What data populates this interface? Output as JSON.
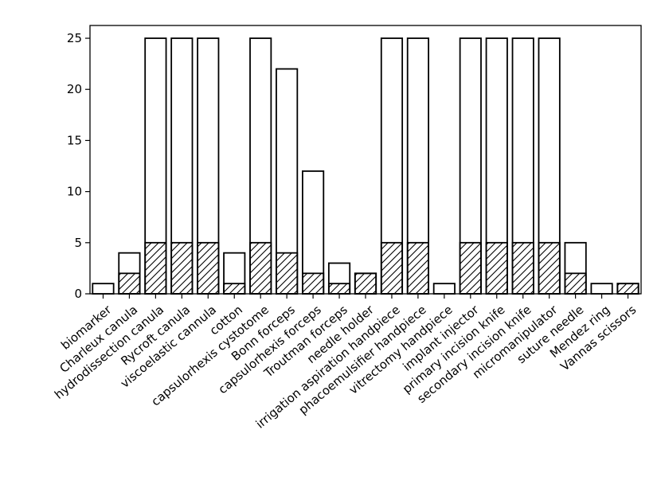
{
  "chart_data": {
    "type": "bar",
    "categories": [
      "biomarker",
      "Charleux canula",
      "hydrodissection canula",
      "Rycroft canula",
      "viscoelastic cannula",
      "cotton",
      "capsulorhexis cystotome",
      "Bonn forceps",
      "capsulorhexis forceps",
      "Troutman forceps",
      "needle holder",
      "irrigation aspiration handpiece",
      "phacoemulsifier handpiece",
      "vitrectomy handpiece",
      "implant injector",
      "primary incision knife",
      "secondary incision knife",
      "micromanipulator",
      "suture needle",
      "Mendez ring",
      "Vannas scissors"
    ],
    "series": [
      {
        "fill": "none",
        "values": [
          1,
          4,
          25,
          25,
          25,
          4,
          25,
          22,
          12,
          3,
          2,
          25,
          25,
          1,
          25,
          25,
          25,
          25,
          5,
          1,
          1
        ]
      },
      {
        "fill": "hatched",
        "values": [
          0,
          2,
          5,
          5,
          5,
          1,
          5,
          4,
          2,
          1,
          2,
          5,
          5,
          0,
          5,
          5,
          5,
          5,
          2,
          0,
          1
        ]
      }
    ],
    "y_ticks": [
      "0",
      "5",
      "10",
      "15",
      "20",
      "25"
    ],
    "ylim": [
      0,
      26.25
    ],
    "title": "",
    "xlabel": "",
    "ylabel": "",
    "grid": false,
    "colors": {
      "bar_edge": "#000000",
      "bar_face": "#ffffff",
      "hatch": "#000000"
    }
  }
}
